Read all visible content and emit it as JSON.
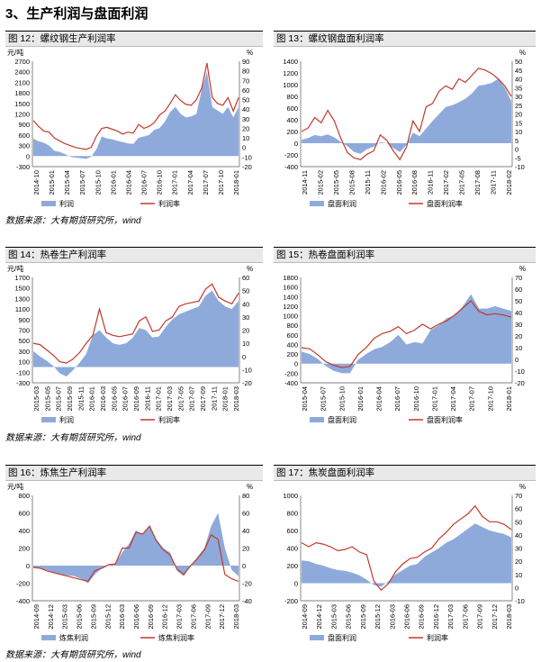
{
  "section_title": "3、生产利润与盘面利润",
  "sources": [
    "数据来源：大有期货研究所，wind",
    "数据来源：大有期货研究所，wind",
    "数据来源：大有期货研究所，wind"
  ],
  "charts": [
    {
      "header": "图 12：螺纹钢生产利润率",
      "left_unit": "元/吨",
      "right_unit": "%",
      "left_ticks": [
        2700,
        2400,
        2100,
        1800,
        1500,
        1200,
        900,
        600,
        300,
        0,
        -300
      ],
      "right_ticks": [
        90,
        80,
        70,
        60,
        50,
        40,
        30,
        20,
        10,
        0,
        -10,
        -20
      ],
      "x_labels": [
        "2014-10",
        "2015-01",
        "2015-04",
        "2015-07",
        "2015-10",
        "2016-01",
        "2016-04",
        "2016-07",
        "2016-10",
        "2017-01",
        "2017-04",
        "2017-07",
        "2017-10",
        "2018-01"
      ],
      "legend": [
        "利润",
        "利润率"
      ]
    },
    {
      "header": "图 13：螺纹钢盘面利润率",
      "left_unit": "",
      "right_unit": "%",
      "left_ticks": [
        1400,
        1200,
        1000,
        800,
        600,
        400,
        200,
        0,
        -200,
        -400
      ],
      "right_ticks": [
        50,
        45,
        40,
        35,
        30,
        25,
        20,
        15,
        10,
        5,
        0,
        -5,
        -10
      ],
      "x_labels": [
        "2014-11",
        "2015-02",
        "2015-05",
        "2015-08",
        "2015-11",
        "2016-02",
        "2016-05",
        "2016-08",
        "2016-11",
        "2017-02",
        "2017-05",
        "2017-08",
        "2017-11",
        "2018-02"
      ],
      "legend": [
        "盘面利润",
        "盘面利润率"
      ]
    },
    {
      "header": "图 14：热卷生产利润率",
      "left_unit": "元/吨",
      "right_unit": "%",
      "left_ticks": [
        1700,
        1500,
        1300,
        1100,
        900,
        700,
        500,
        300,
        100,
        -100,
        -300
      ],
      "right_ticks": [
        60,
        50,
        40,
        30,
        20,
        10,
        0,
        -10,
        -20
      ],
      "x_labels": [
        "2015-03",
        "2015-05",
        "2015-07",
        "2015-09",
        "2015-11",
        "2016-01",
        "2016-03",
        "2016-05",
        "2016-07",
        "2016-09",
        "2016-11",
        "2017-01",
        "2017-03",
        "2017-05",
        "2017-07",
        "2017-09",
        "2017-11",
        "2018-01",
        "2018-03"
      ],
      "legend": [
        "利润",
        "利润率"
      ]
    },
    {
      "header": "图 15：热卷盘面利润率",
      "left_unit": "",
      "right_unit": "%",
      "left_ticks": [
        1800,
        1600,
        1400,
        1200,
        1000,
        800,
        600,
        400,
        200,
        0,
        -200,
        -400
      ],
      "right_ticks": [
        70,
        60,
        50,
        40,
        30,
        20,
        10,
        0,
        -10,
        -20
      ],
      "x_labels": [
        "2015-04",
        "2015-07",
        "2015-10",
        "2016-01",
        "2016-04",
        "2016-07",
        "2016-10",
        "2017-01",
        "2017-04",
        "2017-07",
        "2017-10",
        "2018-01"
      ],
      "legend": [
        "盘面利润",
        "盘面利润率"
      ]
    },
    {
      "header": "图 16：炼焦生产利润率",
      "left_unit": "元/吨",
      "right_unit": "%",
      "left_ticks": [
        800,
        600,
        400,
        200,
        0,
        -200,
        -400
      ],
      "right_ticks": [
        80,
        60,
        40,
        20,
        0,
        -20,
        -40
      ],
      "x_labels": [
        "2014-09",
        "2014-12",
        "2015-03",
        "2015-06",
        "2015-09",
        "2015-12",
        "2016-03",
        "2016-06",
        "2016-09",
        "2016-12",
        "2017-03",
        "2017-06",
        "2017-09",
        "2017-12",
        "2018-03"
      ],
      "legend": [
        "炼焦利润",
        "炼焦利润率"
      ]
    },
    {
      "header": "图 17：焦炭盘面利润率",
      "left_unit": "",
      "right_unit": "%",
      "left_ticks": [
        1000,
        800,
        600,
        400,
        200,
        0,
        -200
      ],
      "right_ticks": [
        70,
        60,
        50,
        40,
        30,
        20,
        10,
        0,
        -10
      ],
      "x_labels": [
        "2014-09",
        "2014-12",
        "2015-03",
        "2015-06",
        "2015-09",
        "2015-12",
        "2016-03",
        "2016-06",
        "2016-09",
        "2016-12",
        "2017-03",
        "2017-06",
        "2017-09",
        "2017-12",
        "2018-03"
      ],
      "legend": [
        "盘面利润",
        "利润率"
      ]
    }
  ],
  "chart_data": [
    {
      "type": "area",
      "title": "图 12：螺纹钢生产利润率",
      "ylim": [
        -300,
        2700
      ],
      "y2lim": [
        -20,
        90
      ],
      "series": [
        {
          "name": "利润",
          "axis": "left",
          "style": "area",
          "color": "#8eaadb",
          "values": [
            500,
            420,
            380,
            300,
            150,
            120,
            60,
            -20,
            -40,
            -60,
            -80,
            -20,
            200,
            560,
            500,
            480,
            430,
            400,
            360,
            350,
            520,
            560,
            600,
            750,
            800,
            980,
            1250,
            1400,
            1200,
            1100,
            1130,
            1200,
            1900,
            2400,
            1400,
            1300,
            1200,
            1400,
            1100,
            1400
          ]
        },
        {
          "name": "利润率",
          "axis": "right",
          "style": "line",
          "color": "#c0392b",
          "values": [
            28,
            22,
            17,
            16,
            10,
            7,
            4,
            2,
            0,
            -1,
            -2,
            0,
            12,
            20,
            21,
            19,
            17,
            14,
            16,
            15,
            24,
            20,
            22,
            26,
            34,
            38,
            46,
            55,
            49,
            45,
            44,
            50,
            62,
            88,
            52,
            46,
            44,
            52,
            38,
            52
          ]
        }
      ]
    },
    {
      "type": "area",
      "title": "图 13：螺纹钢盘面利润率",
      "ylim": [
        -400,
        1400
      ],
      "y2lim": [
        -10,
        50
      ],
      "series": [
        {
          "name": "盘面利润",
          "axis": "left",
          "style": "area",
          "color": "#8eaadb",
          "values": [
            60,
            90,
            140,
            120,
            150,
            100,
            20,
            -50,
            -150,
            -180,
            -100,
            -60,
            20,
            0,
            -80,
            -150,
            -30,
            180,
            120,
            250,
            380,
            500,
            620,
            650,
            700,
            760,
            850,
            980,
            1000,
            1030,
            1100,
            950,
            720
          ]
        },
        {
          "name": "盘面利润率",
          "axis": "right",
          "style": "line",
          "color": "#c0392b",
          "values": [
            10,
            12,
            18,
            15,
            22,
            16,
            6,
            -2,
            -5,
            -6,
            -3,
            -1,
            8,
            5,
            -1,
            -6,
            1,
            16,
            10,
            24,
            26,
            33,
            36,
            34,
            40,
            38,
            42,
            46,
            45,
            43,
            40,
            36,
            30
          ]
        }
      ]
    },
    {
      "type": "area",
      "title": "图 14：热卷生产利润率",
      "ylim": [
        -300,
        1700
      ],
      "y2lim": [
        -20,
        60
      ],
      "series": [
        {
          "name": "利润",
          "axis": "left",
          "style": "area",
          "color": "#8eaadb",
          "values": [
            300,
            200,
            120,
            20,
            -120,
            -180,
            -60,
            80,
            250,
            600,
            700,
            560,
            450,
            420,
            450,
            550,
            740,
            700,
            560,
            580,
            760,
            900,
            1000,
            1050,
            1100,
            1150,
            1350,
            1450,
            1250,
            1150,
            1100,
            1250
          ]
        },
        {
          "name": "利润率",
          "axis": "right",
          "style": "line",
          "color": "#c0392b",
          "values": [
            10,
            9,
            5,
            1,
            -4,
            -5,
            -2,
            3,
            10,
            16,
            36,
            18,
            16,
            15,
            16,
            17,
            27,
            30,
            19,
            20,
            27,
            30,
            38,
            40,
            41,
            42,
            51,
            55,
            45,
            42,
            40,
            48
          ]
        }
      ]
    },
    {
      "type": "area",
      "title": "图 15：热卷盘面利润率",
      "ylim": [
        -400,
        1800
      ],
      "y2lim": [
        -20,
        70
      ],
      "series": [
        {
          "name": "盘面利润",
          "axis": "left",
          "style": "area",
          "color": "#8eaadb",
          "values": [
            250,
            200,
            100,
            -50,
            -150,
            -200,
            -200,
            80,
            200,
            300,
            350,
            450,
            600,
            400,
            450,
            420,
            700,
            800,
            950,
            1000,
            1200,
            1450,
            1150,
            1150,
            1200,
            1150,
            1100
          ]
        },
        {
          "name": "盘面利润率",
          "axis": "right",
          "style": "line",
          "color": "#c0392b",
          "values": [
            10,
            9,
            4,
            -2,
            -5,
            -7,
            -6,
            4,
            10,
            18,
            22,
            24,
            28,
            22,
            25,
            30,
            26,
            30,
            33,
            38,
            44,
            50,
            41,
            38,
            39,
            38,
            36
          ]
        }
      ]
    },
    {
      "type": "area",
      "title": "图 16：炼焦生产利润率",
      "ylim": [
        -400,
        800
      ],
      "y2lim": [
        -40,
        80
      ],
      "series": [
        {
          "name": "炼焦利润",
          "axis": "left",
          "style": "area",
          "color": "#8eaadb",
          "values": [
            -20,
            -30,
            -50,
            -80,
            -100,
            -110,
            -120,
            -150,
            -200,
            -100,
            -30,
            0,
            30,
            150,
            250,
            400,
            350,
            450,
            300,
            200,
            150,
            -60,
            -120,
            0,
            100,
            200,
            450,
            600,
            200,
            -50,
            -120
          ]
        },
        {
          "name": "炼焦利润率",
          "axis": "right",
          "style": "line",
          "color": "#c0392b",
          "values": [
            -2,
            -3,
            -6,
            -8,
            -10,
            -12,
            -14,
            -16,
            -18,
            -6,
            -3,
            1,
            2,
            20,
            20,
            38,
            36,
            45,
            28,
            18,
            12,
            -4,
            -10,
            0,
            8,
            18,
            35,
            30,
            -10,
            -15,
            -18
          ]
        }
      ]
    },
    {
      "type": "area",
      "title": "图 17：焦炭盘面利润率",
      "ylim": [
        -200,
        1000
      ],
      "y2lim": [
        -10,
        70
      ],
      "series": [
        {
          "name": "盘面利润",
          "axis": "left",
          "style": "area",
          "color": "#8eaadb",
          "values": [
            260,
            250,
            220,
            200,
            170,
            150,
            140,
            120,
            90,
            40,
            -20,
            -40,
            20,
            100,
            150,
            200,
            220,
            300,
            350,
            400,
            460,
            500,
            560,
            620,
            680,
            640,
            600,
            580,
            560,
            520
          ]
        },
        {
          "name": "利润率",
          "axis": "right",
          "style": "line",
          "color": "#c0392b",
          "values": [
            34,
            31,
            34,
            33,
            31,
            28,
            29,
            31,
            27,
            25,
            5,
            -2,
            3,
            12,
            18,
            22,
            23,
            27,
            30,
            37,
            42,
            48,
            52,
            56,
            62,
            54,
            50,
            50,
            48,
            44
          ]
        }
      ]
    }
  ]
}
